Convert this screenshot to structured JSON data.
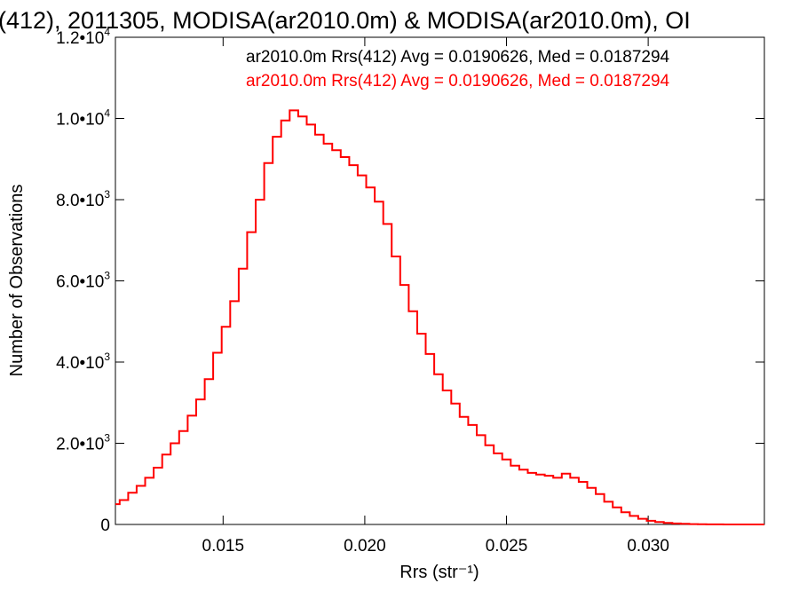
{
  "chart_data": {
    "type": "line",
    "step": true,
    "title": "(412), 2011305, MODISA(ar2010.0m) & MODISA(ar2010.0m), OI",
    "xlabel": "Rrs (str⁻¹)",
    "ylabel": "Number of Observations",
    "xlim": [
      0.0112,
      0.0341
    ],
    "ylim": [
      0,
      12000
    ],
    "xticks": [
      {
        "value": 0.015,
        "label": "0.015"
      },
      {
        "value": 0.02,
        "label": "0.020"
      },
      {
        "value": 0.025,
        "label": "0.025"
      },
      {
        "value": 0.03,
        "label": "0.030"
      }
    ],
    "yticks": [
      {
        "value": 0,
        "label": "0",
        "mantissa": "0",
        "exp": ""
      },
      {
        "value": 2000,
        "label": "2.0•10^3",
        "mantissa": "2.0•10",
        "exp": "3"
      },
      {
        "value": 4000,
        "label": "4.0•10^3",
        "mantissa": "4.0•10",
        "exp": "3"
      },
      {
        "value": 6000,
        "label": "6.0•10^3",
        "mantissa": "6.0•10",
        "exp": "3"
      },
      {
        "value": 8000,
        "label": "8.0•10^3",
        "mantissa": "8.0•10",
        "exp": "3"
      },
      {
        "value": 10000,
        "label": "1.0•10^4",
        "mantissa": "1.0•10",
        "exp": "4"
      },
      {
        "value": 12000,
        "label": "1.2•10^4",
        "mantissa": "1.2•10",
        "exp": "4"
      }
    ],
    "legend": [
      {
        "text": "ar2010.0m Rrs(412) Avg = 0.0190626, Med = 0.0187294",
        "color": "#000000"
      },
      {
        "text": "ar2010.0m Rrs(412) Avg = 0.0190626, Med = 0.0187294",
        "color": "#ff0000"
      }
    ],
    "legend_position": "top-right",
    "series": [
      {
        "color": "#ff0000",
        "x": [
          0.0112,
          0.0115,
          0.0118,
          0.0121,
          0.0124,
          0.0127,
          0.013,
          0.0133,
          0.0136,
          0.0139,
          0.0142,
          0.0145,
          0.0148,
          0.0151,
          0.0154,
          0.0157,
          0.016,
          0.0163,
          0.0166,
          0.0169,
          0.0172,
          0.0175,
          0.0178,
          0.0181,
          0.0184,
          0.0187,
          0.019,
          0.0193,
          0.0196,
          0.0199,
          0.0202,
          0.0205,
          0.0208,
          0.0211,
          0.0214,
          0.0217,
          0.022,
          0.0223,
          0.0226,
          0.0229,
          0.0232,
          0.0235,
          0.0238,
          0.0241,
          0.0244,
          0.0247,
          0.025,
          0.0253,
          0.0256,
          0.0259,
          0.0262,
          0.0265,
          0.0268,
          0.0271,
          0.0274,
          0.0277,
          0.028,
          0.0283,
          0.0286,
          0.0289,
          0.0292,
          0.0295,
          0.0298,
          0.0301,
          0.0304,
          0.0307,
          0.031,
          0.0313,
          0.0316,
          0.0319,
          0.0322,
          0.0325,
          0.0328,
          0.0331,
          0.0334,
          0.0337,
          0.034
        ],
        "y": [
          500,
          600,
          780,
          950,
          1150,
          1400,
          1720,
          2000,
          2300,
          2680,
          3080,
          3580,
          4230,
          4870,
          5500,
          6300,
          7200,
          8000,
          8900,
          9550,
          9950,
          10200,
          10050,
          9850,
          9600,
          9380,
          9220,
          9050,
          8850,
          8600,
          8300,
          7950,
          7400,
          6600,
          5900,
          5250,
          4700,
          4200,
          3700,
          3300,
          2980,
          2650,
          2450,
          2200,
          1950,
          1750,
          1600,
          1450,
          1350,
          1270,
          1230,
          1200,
          1150,
          1250,
          1150,
          1050,
          900,
          750,
          560,
          420,
          300,
          210,
          140,
          90,
          60,
          40,
          25,
          15,
          8,
          5,
          3,
          2,
          1,
          0,
          0,
          0,
          0
        ]
      }
    ]
  }
}
